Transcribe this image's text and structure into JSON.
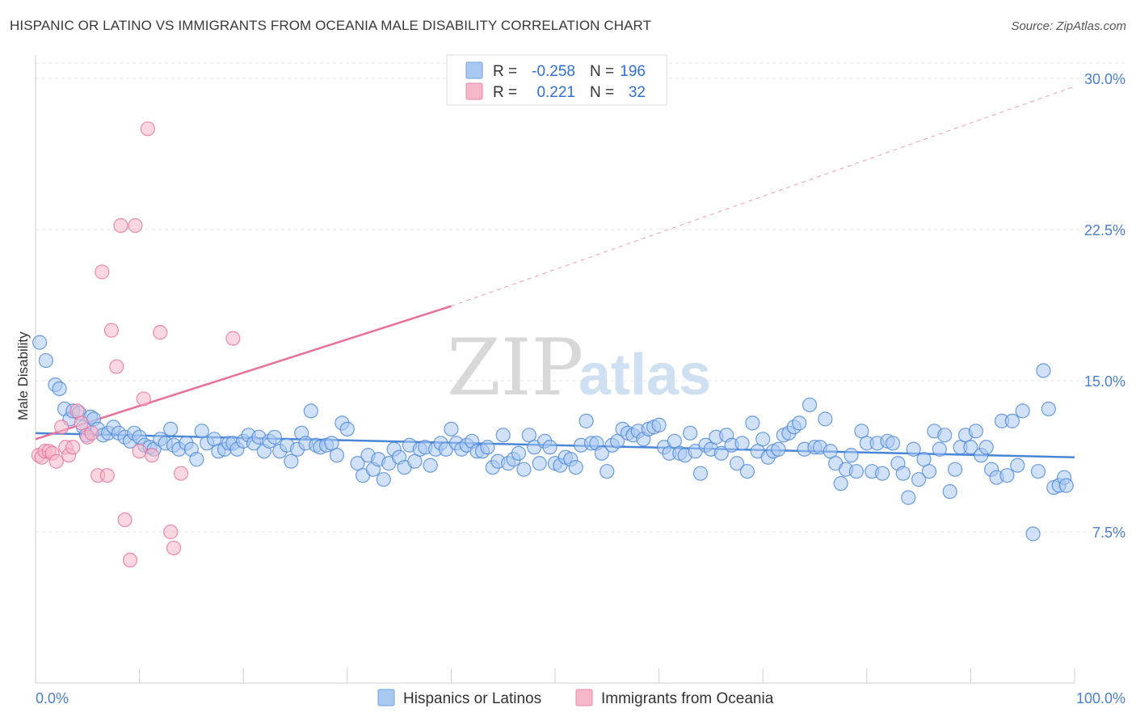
{
  "header": {
    "title": "HISPANIC OR LATINO VS IMMIGRANTS FROM OCEANIA MALE DISABILITY CORRELATION CHART",
    "source": "Source: ZipAtlas.com"
  },
  "watermark": {
    "part1": "ZIP",
    "part2": "atlas"
  },
  "legend": {
    "rows": [
      {
        "r_label": "R =",
        "r_value": "-0.258",
        "n_label": "N =",
        "n_value": "196",
        "color": "#a9c9f2"
      },
      {
        "r_label": "R =",
        "r_value": "0.221",
        "n_label": "N =",
        "n_value": "32",
        "color": "#f6b7c9"
      }
    ]
  },
  "bottom_legend": {
    "items": [
      {
        "label": "Hispanics or Latinos",
        "color": "#a9c9f2"
      },
      {
        "label": "Immigrants from Oceania",
        "color": "#f6b7c9"
      }
    ]
  },
  "chart_data": {
    "type": "scatter",
    "title": "HISPANIC OR LATINO VS IMMIGRANTS FROM OCEANIA MALE DISABILITY CORRELATION CHART",
    "xlabel": "",
    "ylabel": "Male Disability",
    "xlim": [
      0,
      100
    ],
    "ylim": [
      0,
      30
    ],
    "x_tick_labels": [
      "0.0%",
      "100.0%"
    ],
    "y_ticks": [
      7.5,
      15.0,
      22.5,
      30.0
    ],
    "y_tick_labels": [
      "7.5%",
      "15.0%",
      "22.5%",
      "30.0%"
    ],
    "grid": true,
    "legend_position": "top-center",
    "series": [
      {
        "name": "Hispanics or Latinos",
        "color": "#4a86d8",
        "fill": "#a9c9f2",
        "r": -0.258,
        "n": 196,
        "trend": {
          "x0": 0,
          "y0": 12.4,
          "x1": 100,
          "y1": 11.2
        },
        "points": [
          [
            0.4,
            16.9
          ],
          [
            1.0,
            16.0
          ],
          [
            1.9,
            14.8
          ],
          [
            2.3,
            14.6
          ],
          [
            2.8,
            13.6
          ],
          [
            3.3,
            13.1
          ],
          [
            3.6,
            13.5
          ],
          [
            4.2,
            13.4
          ],
          [
            4.6,
            12.7
          ],
          [
            4.9,
            12.3
          ],
          [
            5.3,
            13.2
          ],
          [
            5.6,
            13.1
          ],
          [
            6.0,
            12.6
          ],
          [
            6.5,
            12.3
          ],
          [
            7.0,
            12.4
          ],
          [
            7.5,
            12.7
          ],
          [
            8.0,
            12.4
          ],
          [
            8.6,
            12.2
          ],
          [
            9.1,
            12.0
          ],
          [
            9.5,
            12.4
          ],
          [
            10.0,
            12.2
          ],
          [
            10.5,
            11.8
          ],
          [
            11.0,
            11.7
          ],
          [
            11.4,
            11.6
          ],
          [
            12.0,
            12.1
          ],
          [
            12.5,
            11.9
          ],
          [
            13.0,
            12.6
          ],
          [
            13.3,
            11.8
          ],
          [
            13.8,
            11.6
          ],
          [
            14.5,
            11.9
          ],
          [
            15.0,
            11.6
          ],
          [
            15.5,
            11.1
          ],
          [
            16.0,
            12.5
          ],
          [
            16.5,
            11.9
          ],
          [
            17.2,
            12.1
          ],
          [
            17.6,
            11.5
          ],
          [
            18.2,
            11.6
          ],
          [
            18.6,
            11.9
          ],
          [
            19.0,
            11.9
          ],
          [
            19.4,
            11.6
          ],
          [
            20.0,
            12.0
          ],
          [
            20.5,
            12.3
          ],
          [
            21.0,
            11.9
          ],
          [
            21.5,
            12.2
          ],
          [
            22.0,
            11.5
          ],
          [
            22.5,
            12.0
          ],
          [
            23.0,
            12.2
          ],
          [
            23.5,
            11.5
          ],
          [
            24.2,
            11.8
          ],
          [
            24.6,
            11.0
          ],
          [
            25.2,
            11.6
          ],
          [
            25.6,
            12.4
          ],
          [
            26.0,
            11.9
          ],
          [
            26.5,
            13.5
          ],
          [
            27.0,
            11.8
          ],
          [
            27.4,
            11.7
          ],
          [
            28.0,
            11.8
          ],
          [
            28.5,
            11.9
          ],
          [
            29.0,
            11.3
          ],
          [
            29.5,
            12.9
          ],
          [
            30.0,
            12.6
          ],
          [
            31.0,
            10.9
          ],
          [
            31.5,
            10.3
          ],
          [
            32.0,
            11.3
          ],
          [
            32.5,
            10.6
          ],
          [
            33.0,
            11.1
          ],
          [
            33.5,
            10.1
          ],
          [
            34.0,
            10.9
          ],
          [
            34.5,
            11.6
          ],
          [
            35.0,
            11.2
          ],
          [
            35.5,
            10.7
          ],
          [
            36.0,
            11.8
          ],
          [
            36.5,
            11.0
          ],
          [
            37.0,
            11.6
          ],
          [
            37.5,
            11.7
          ],
          [
            38.0,
            10.8
          ],
          [
            38.5,
            11.6
          ],
          [
            39.0,
            11.9
          ],
          [
            39.5,
            11.6
          ],
          [
            40.0,
            12.6
          ],
          [
            40.5,
            11.9
          ],
          [
            41.0,
            11.6
          ],
          [
            41.5,
            11.8
          ],
          [
            42.0,
            12.0
          ],
          [
            42.5,
            11.5
          ],
          [
            43.0,
            11.5
          ],
          [
            43.5,
            11.7
          ],
          [
            44.0,
            10.7
          ],
          [
            44.5,
            11.0
          ],
          [
            45.0,
            12.3
          ],
          [
            45.5,
            10.9
          ],
          [
            46.0,
            11.1
          ],
          [
            46.5,
            11.4
          ],
          [
            47.0,
            10.6
          ],
          [
            47.5,
            12.3
          ],
          [
            48.0,
            11.7
          ],
          [
            48.5,
            10.9
          ],
          [
            49.0,
            12.0
          ],
          [
            49.5,
            11.7
          ],
          [
            50.0,
            10.9
          ],
          [
            50.5,
            10.8
          ],
          [
            51.0,
            11.2
          ],
          [
            51.5,
            11.1
          ],
          [
            52.0,
            10.7
          ],
          [
            52.5,
            11.8
          ],
          [
            53.0,
            13.0
          ],
          [
            53.5,
            11.9
          ],
          [
            54.0,
            11.9
          ],
          [
            54.5,
            11.4
          ],
          [
            55.0,
            10.5
          ],
          [
            55.5,
            11.8
          ],
          [
            56.0,
            12.0
          ],
          [
            56.5,
            12.6
          ],
          [
            57.0,
            12.4
          ],
          [
            57.5,
            12.3
          ],
          [
            58.0,
            12.5
          ],
          [
            58.5,
            12.1
          ],
          [
            59.0,
            12.6
          ],
          [
            59.5,
            12.7
          ],
          [
            60.0,
            12.8
          ],
          [
            60.5,
            11.7
          ],
          [
            61.0,
            11.4
          ],
          [
            61.5,
            12.0
          ],
          [
            62.0,
            11.4
          ],
          [
            62.5,
            11.3
          ],
          [
            63.0,
            12.4
          ],
          [
            63.5,
            11.5
          ],
          [
            64.0,
            10.4
          ],
          [
            64.5,
            11.8
          ],
          [
            65.0,
            11.6
          ],
          [
            65.5,
            12.2
          ],
          [
            66.0,
            11.4
          ],
          [
            66.5,
            12.3
          ],
          [
            67.0,
            11.8
          ],
          [
            67.5,
            10.9
          ],
          [
            68.0,
            11.9
          ],
          [
            68.5,
            10.5
          ],
          [
            69.0,
            12.9
          ],
          [
            69.5,
            11.5
          ],
          [
            70.0,
            12.1
          ],
          [
            70.5,
            11.2
          ],
          [
            71.0,
            11.5
          ],
          [
            71.5,
            11.6
          ],
          [
            72.0,
            12.3
          ],
          [
            72.5,
            12.4
          ],
          [
            73.0,
            12.7
          ],
          [
            73.5,
            12.9
          ],
          [
            74.0,
            11.6
          ],
          [
            74.5,
            13.8
          ],
          [
            75.0,
            11.7
          ],
          [
            75.5,
            11.7
          ],
          [
            76.0,
            13.1
          ],
          [
            76.5,
            11.5
          ],
          [
            77.0,
            10.9
          ],
          [
            77.5,
            9.9
          ],
          [
            78.0,
            10.6
          ],
          [
            78.5,
            11.3
          ],
          [
            79.0,
            10.5
          ],
          [
            79.5,
            12.5
          ],
          [
            80.0,
            11.9
          ],
          [
            80.5,
            10.5
          ],
          [
            81.0,
            11.9
          ],
          [
            81.5,
            10.4
          ],
          [
            82.0,
            12.0
          ],
          [
            82.5,
            11.9
          ],
          [
            83.0,
            10.9
          ],
          [
            83.5,
            10.4
          ],
          [
            84.0,
            9.2
          ],
          [
            84.5,
            11.6
          ],
          [
            85.0,
            10.1
          ],
          [
            85.5,
            11.1
          ],
          [
            86.0,
            10.5
          ],
          [
            86.5,
            12.5
          ],
          [
            87.0,
            11.6
          ],
          [
            87.5,
            12.3
          ],
          [
            88.0,
            9.5
          ],
          [
            88.5,
            10.6
          ],
          [
            89.0,
            11.7
          ],
          [
            89.5,
            12.3
          ],
          [
            90.0,
            11.7
          ],
          [
            90.5,
            12.5
          ],
          [
            91.0,
            11.3
          ],
          [
            91.5,
            11.7
          ],
          [
            92.0,
            10.6
          ],
          [
            92.5,
            10.2
          ],
          [
            93.0,
            13.0
          ],
          [
            93.5,
            10.3
          ],
          [
            94.0,
            13.0
          ],
          [
            94.5,
            10.8
          ],
          [
            95.0,
            13.5
          ],
          [
            96.0,
            7.4
          ],
          [
            96.5,
            10.5
          ],
          [
            97.0,
            15.5
          ],
          [
            97.5,
            13.6
          ],
          [
            98.0,
            9.7
          ],
          [
            98.5,
            9.8
          ],
          [
            99.0,
            10.2
          ],
          [
            99.2,
            9.8
          ]
        ]
      },
      {
        "name": "Immigrants from Oceania",
        "color": "#e8709a",
        "fill": "#f6b7c9",
        "r": 0.221,
        "n": 32,
        "trend": {
          "x0": 0,
          "y0": 12.1,
          "x1": 40,
          "y1": 18.7
        },
        "trend_extension": {
          "x0": 40,
          "y0": 18.7,
          "x1": 100,
          "y1": 29.6
        },
        "points": [
          [
            0.3,
            11.3
          ],
          [
            0.6,
            11.2
          ],
          [
            0.9,
            11.5
          ],
          [
            1.3,
            11.5
          ],
          [
            1.6,
            11.4
          ],
          [
            2.0,
            11.0
          ],
          [
            2.5,
            12.7
          ],
          [
            2.9,
            11.7
          ],
          [
            3.2,
            11.3
          ],
          [
            3.6,
            11.7
          ],
          [
            4.0,
            13.5
          ],
          [
            4.4,
            12.9
          ],
          [
            5.0,
            12.2
          ],
          [
            5.4,
            12.4
          ],
          [
            6.0,
            10.3
          ],
          [
            6.4,
            20.4
          ],
          [
            6.9,
            10.3
          ],
          [
            7.3,
            17.5
          ],
          [
            7.8,
            15.7
          ],
          [
            8.2,
            22.7
          ],
          [
            8.6,
            8.1
          ],
          [
            9.1,
            6.1
          ],
          [
            9.6,
            22.7
          ],
          [
            10.0,
            11.5
          ],
          [
            10.4,
            14.1
          ],
          [
            10.8,
            27.5
          ],
          [
            11.2,
            11.3
          ],
          [
            12.0,
            17.4
          ],
          [
            13.0,
            7.5
          ],
          [
            13.3,
            6.7
          ],
          [
            14.0,
            10.4
          ],
          [
            19.0,
            17.1
          ]
        ]
      }
    ]
  }
}
